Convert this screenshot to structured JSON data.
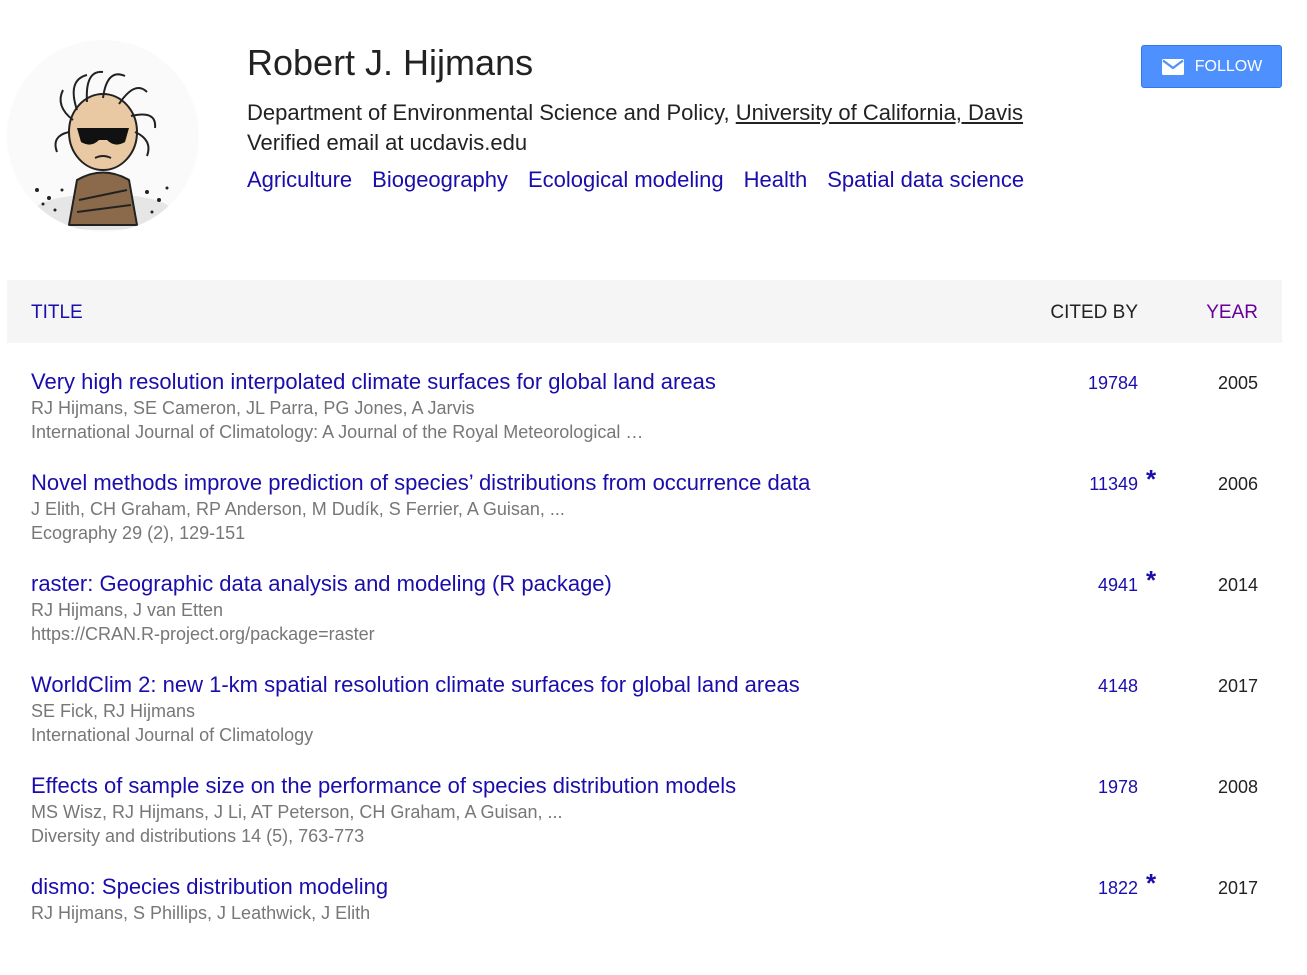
{
  "profile": {
    "name": "Robert J. Hijmans",
    "affiliation_prefix": "Department of Environmental Science and Policy, ",
    "affiliation_link": "University of California, Davis",
    "email": "Verified email at ucdavis.edu",
    "interests": [
      "Agriculture",
      "Biogeography",
      "Ecological modeling",
      "Health",
      "Spatial data science"
    ],
    "follow_label": "FOLLOW",
    "follow_icon": "envelope-icon"
  },
  "table": {
    "headers": {
      "title": "TITLE",
      "cited_by": "CITED BY",
      "year": "YEAR"
    },
    "rows": [
      {
        "title": "Very high resolution interpolated climate surfaces for global land areas",
        "authors": "RJ Hijmans, SE Cameron, JL Parra, PG Jones, A Jarvis",
        "venue": "International Journal of Climatology: A Journal of the Royal Meteorological …",
        "cited_by": "19784",
        "star": "",
        "year": "2005"
      },
      {
        "title": "Novel methods improve prediction of species’ distributions from occurrence data",
        "authors": "J Elith, CH Graham, RP Anderson, M Dudík, S Ferrier, A Guisan, ...",
        "venue": "Ecography 29 (2), 129-151",
        "cited_by": "11349",
        "star": "*",
        "year": "2006"
      },
      {
        "title": "raster: Geographic data analysis and modeling (R package)",
        "authors": "RJ Hijmans, J van Etten",
        "venue": "https://CRAN.R-project.org/package=raster",
        "cited_by": "4941",
        "star": "*",
        "year": "2014"
      },
      {
        "title": "WorldClim 2: new 1-km spatial resolution climate surfaces for global land areas",
        "authors": "SE Fick, RJ Hijmans",
        "venue": "International Journal of Climatology",
        "cited_by": "4148",
        "star": "",
        "year": "2017"
      },
      {
        "title": "Effects of sample size on the performance of species distribution models",
        "authors": "MS Wisz, RJ Hijmans, J Li, AT Peterson, CH Graham, A Guisan, ...",
        "venue": "Diversity and distributions 14 (5), 763-773",
        "cited_by": "1978",
        "star": "",
        "year": "2008"
      },
      {
        "title": "dismo: Species distribution modeling",
        "authors": "RJ Hijmans, S Phillips, J Leathwick, J Elith",
        "venue": "",
        "cited_by": "1822",
        "star": "*",
        "year": "2017"
      }
    ]
  },
  "colors": {
    "link": "#1a0dab",
    "visited": "#660099",
    "muted": "#777777",
    "button": "#4d90fe",
    "header_bg": "#f5f5f5"
  }
}
